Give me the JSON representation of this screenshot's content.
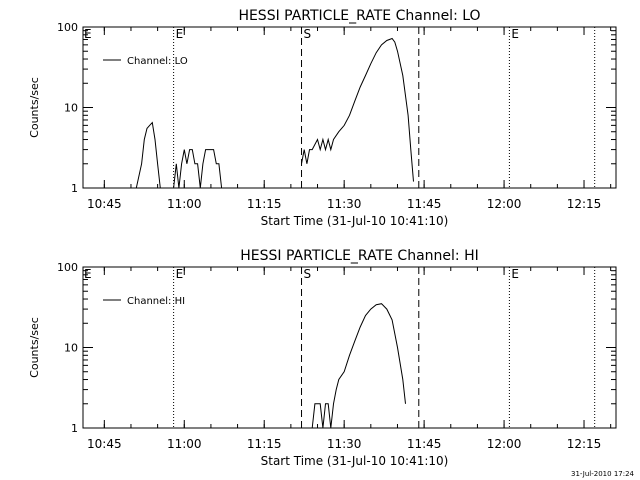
{
  "footer": {
    "timestamp": "31-Jul-2010 17:24"
  },
  "chart_data": [
    {
      "type": "line",
      "title": "HESSI PARTICLE_RATE Channel: LO",
      "xlabel": "Start Time (31-Jul-10 10:41:10)",
      "ylabel": "Counts/sec",
      "y_scale": "log",
      "ylim": [
        1,
        100
      ],
      "xlim": [
        "10:41",
        "12:21"
      ],
      "x_ticks": [
        "10:45",
        "11:00",
        "11:15",
        "11:30",
        "11:45",
        "12:00",
        "12:15"
      ],
      "y_ticks": [
        "1",
        "10",
        "100"
      ],
      "legend": {
        "position": "top-left"
      },
      "markers": [
        {
          "time": "10:58",
          "style": "dotted",
          "label": "E"
        },
        {
          "time": "11:22",
          "style": "dashed",
          "label": "S"
        },
        {
          "time": "11:44",
          "style": "dashed",
          "label": ""
        },
        {
          "time": "12:01",
          "style": "dotted",
          "label": "E"
        },
        {
          "time": "12:17",
          "style": "dotted",
          "label": ""
        }
      ],
      "corner_label": "E",
      "series": [
        {
          "name": "Channel: LO",
          "segments": [
            [
              [
                "10:51",
                1
              ],
              [
                "10:52",
                2
              ],
              [
                "10:52.5",
                4
              ],
              [
                "10:53",
                5.5
              ],
              [
                "10:53.5",
                6
              ],
              [
                "10:54",
                6.5
              ],
              [
                "10:54.5",
                4
              ],
              [
                "10:55",
                2
              ],
              [
                "10:55.5",
                1
              ]
            ],
            [
              [
                "10:58",
                1
              ],
              [
                "10:58.5",
                2
              ],
              [
                "10:59",
                1
              ],
              [
                "10:59.5",
                2
              ],
              [
                "11:00",
                3
              ],
              [
                "11:00.5",
                2
              ],
              [
                "11:01",
                3
              ],
              [
                "11:01.5",
                3
              ],
              [
                "11:02",
                2
              ],
              [
                "11:02.5",
                2
              ],
              [
                "11:03",
                1
              ],
              [
                "11:03.5",
                2
              ],
              [
                "11:04",
                3
              ],
              [
                "11:04.5",
                3
              ],
              [
                "11:05",
                3
              ],
              [
                "11:05.5",
                3
              ],
              [
                "11:06",
                2
              ],
              [
                "11:06.5",
                2
              ],
              [
                "11:07",
                1
              ]
            ],
            [
              [
                "11:22",
                2
              ],
              [
                "11:22.5",
                3
              ],
              [
                "11:23",
                2
              ],
              [
                "11:23.5",
                3
              ],
              [
                "11:24",
                3
              ],
              [
                "11:25",
                4
              ],
              [
                "11:25.5",
                3
              ],
              [
                "11:26",
                4
              ],
              [
                "11:26.5",
                3
              ],
              [
                "11:27",
                4
              ],
              [
                "11:27.5",
                3
              ],
              [
                "11:28",
                4
              ],
              [
                "11:29",
                5
              ],
              [
                "11:30",
                6
              ],
              [
                "11:31",
                8
              ],
              [
                "11:32",
                12
              ],
              [
                "11:33",
                18
              ],
              [
                "11:34",
                25
              ],
              [
                "11:35",
                35
              ],
              [
                "11:36",
                48
              ],
              [
                "11:37",
                60
              ],
              [
                "11:38",
                68
              ],
              [
                "11:39",
                72
              ],
              [
                "11:39.5",
                65
              ],
              [
                "11:40",
                50
              ],
              [
                "11:41",
                25
              ],
              [
                "11:42",
                8
              ],
              [
                "11:42.5",
                3
              ],
              [
                "11:43",
                1.2
              ]
            ]
          ]
        }
      ]
    },
    {
      "type": "line",
      "title": "HESSI PARTICLE_RATE Channel: HI",
      "xlabel": "Start Time (31-Jul-10 10:41:10)",
      "ylabel": "Counts/sec",
      "y_scale": "log",
      "ylim": [
        1,
        100
      ],
      "xlim": [
        "10:41",
        "12:21"
      ],
      "x_ticks": [
        "10:45",
        "11:00",
        "11:15",
        "11:30",
        "11:45",
        "12:00",
        "12:15"
      ],
      "y_ticks": [
        "1",
        "10",
        "100"
      ],
      "legend": {
        "position": "top-left"
      },
      "markers": [
        {
          "time": "10:58",
          "style": "dotted",
          "label": "E"
        },
        {
          "time": "11:22",
          "style": "dashed",
          "label": "S"
        },
        {
          "time": "11:44",
          "style": "dashed",
          "label": ""
        },
        {
          "time": "12:01",
          "style": "dotted",
          "label": "E"
        },
        {
          "time": "12:17",
          "style": "dotted",
          "label": ""
        }
      ],
      "corner_label": "E",
      "series": [
        {
          "name": "Channel: HI",
          "segments": [
            [
              [
                "11:24",
                1
              ],
              [
                "11:24.5",
                2
              ],
              [
                "11:25",
                2
              ],
              [
                "11:25.5",
                2
              ],
              [
                "11:26",
                1
              ],
              [
                "11:26.5",
                2
              ],
              [
                "11:27",
                2
              ],
              [
                "11:27.5",
                1
              ],
              [
                "11:28",
                2
              ],
              [
                "11:28.5",
                3
              ],
              [
                "11:29",
                4
              ],
              [
                "11:30",
                5
              ],
              [
                "11:31",
                8
              ],
              [
                "11:32",
                12
              ],
              [
                "11:33",
                18
              ],
              [
                "11:34",
                25
              ],
              [
                "11:35",
                30
              ],
              [
                "11:36",
                34
              ],
              [
                "11:37",
                35
              ],
              [
                "11:38",
                30
              ],
              [
                "11:39",
                22
              ],
              [
                "11:40",
                10
              ],
              [
                "11:41",
                4
              ],
              [
                "11:41.5",
                2
              ]
            ]
          ]
        }
      ]
    }
  ]
}
